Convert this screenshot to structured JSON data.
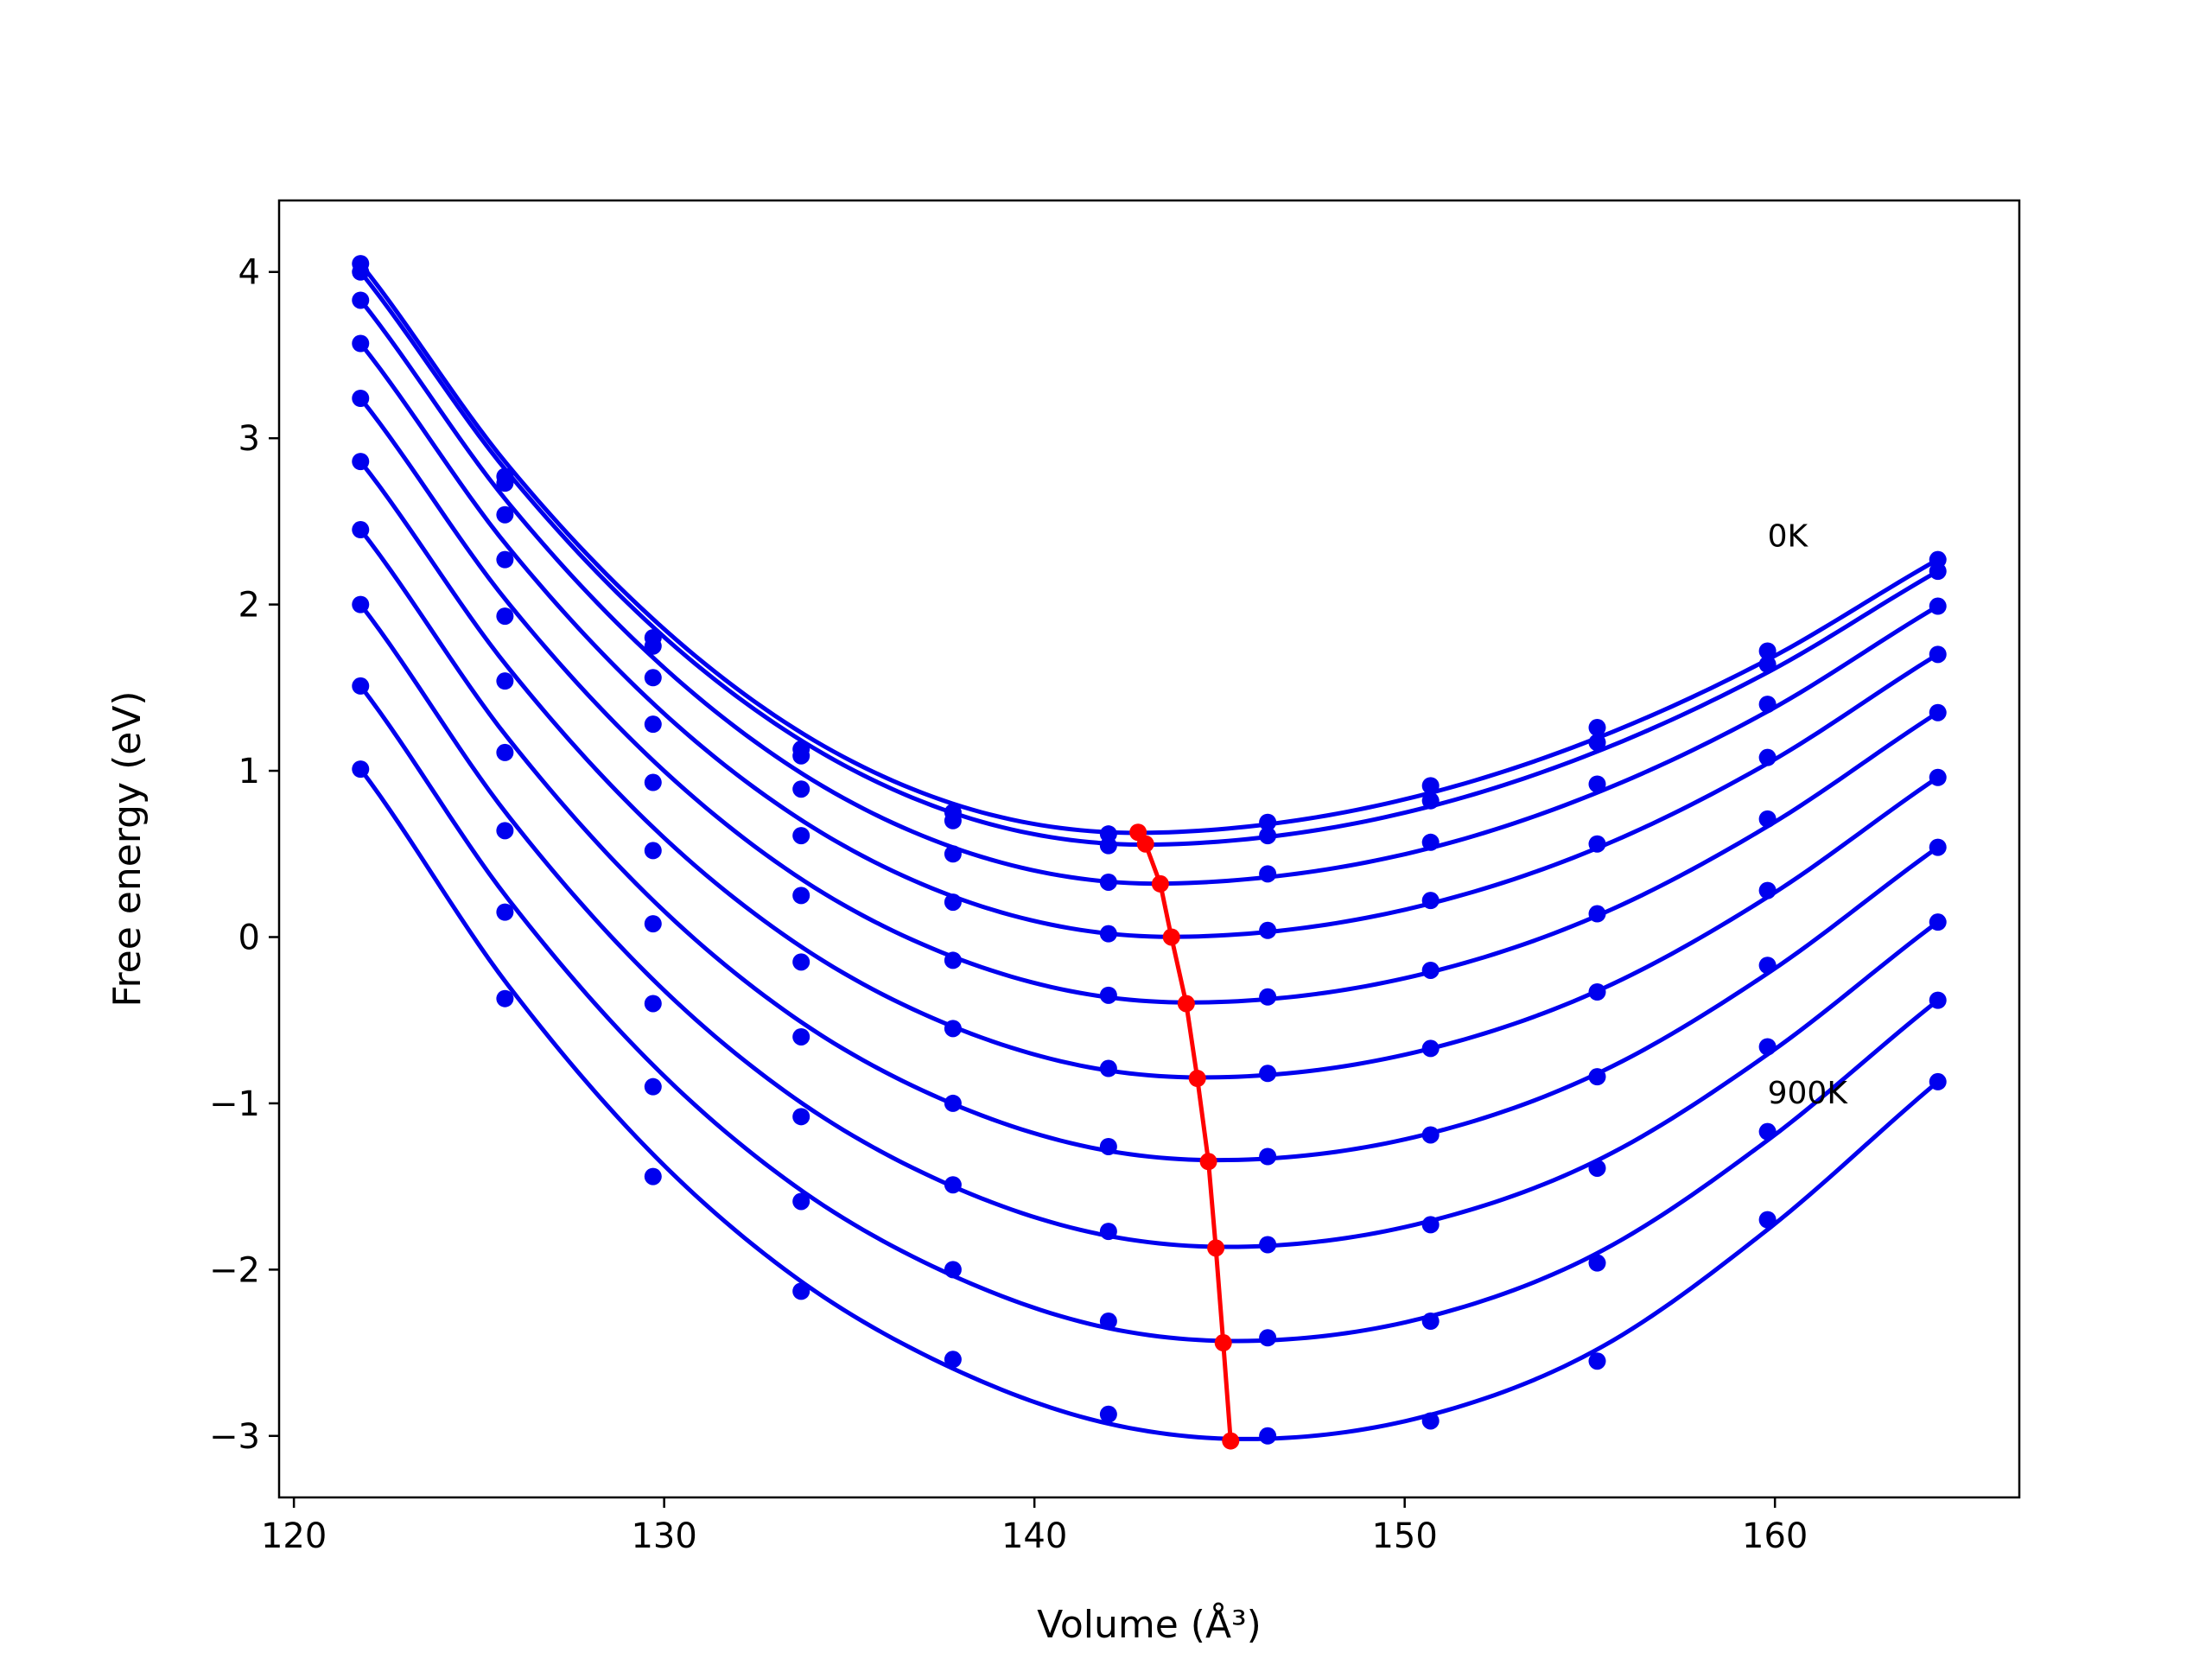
{
  "chart_data": {
    "type": "scatter",
    "title": "",
    "xlabel": "Volume (Å³)",
    "ylabel": "Free energy (eV)",
    "xlim": [
      119.6,
      166.6
    ],
    "ylim": [
      -3.37,
      4.43
    ],
    "xticks": [
      120,
      130,
      140,
      150,
      160
    ],
    "yticks": [
      -3,
      -2,
      -1,
      0,
      1,
      2,
      3,
      4
    ],
    "xtick_labels": [
      "120",
      "130",
      "140",
      "150",
      "160"
    ],
    "ytick_labels": [
      "−3",
      "−2",
      "−1",
      "0",
      "1",
      "2",
      "3",
      "4"
    ],
    "grid": false,
    "legend": "none",
    "annotations": [
      {
        "text": "0K",
        "x": 159.8,
        "y": 2.35
      },
      {
        "text": "900K",
        "x": 159.8,
        "y": -1.0
      }
    ],
    "volumes": [
      121.8,
      125.7,
      129.7,
      133.7,
      137.8,
      142.0,
      146.3,
      150.7,
      155.2,
      159.8,
      164.4
    ],
    "series": [
      {
        "color": "#0000ee",
        "points": [
          4.05,
          2.77,
          1.8,
          1.13,
          0.75,
          0.62,
          0.69,
          0.91,
          1.26,
          1.72,
          2.27
        ]
      },
      {
        "color": "#0000ee",
        "points": [
          4.0,
          2.73,
          1.75,
          1.09,
          0.7,
          0.55,
          0.61,
          0.82,
          1.17,
          1.64,
          2.2
        ]
      },
      {
        "color": "#0000ee",
        "points": [
          3.83,
          2.54,
          1.56,
          0.89,
          0.5,
          0.33,
          0.38,
          0.57,
          0.92,
          1.4,
          1.99
        ]
      },
      {
        "color": "#0000ee",
        "points": [
          3.57,
          2.27,
          1.28,
          0.61,
          0.21,
          0.02,
          0.04,
          0.22,
          0.56,
          1.08,
          1.7
        ]
      },
      {
        "color": "#0000ee",
        "points": [
          3.24,
          1.93,
          0.93,
          0.25,
          -0.14,
          -0.35,
          -0.36,
          -0.2,
          0.14,
          0.71,
          1.35
        ]
      },
      {
        "color": "#0000ee",
        "points": [
          2.86,
          1.54,
          0.52,
          -0.15,
          -0.55,
          -0.79,
          -0.82,
          -0.67,
          -0.33,
          0.28,
          0.96
        ]
      },
      {
        "color": "#0000ee",
        "points": [
          2.45,
          1.11,
          0.08,
          -0.6,
          -1.0,
          -1.26,
          -1.32,
          -1.19,
          -0.84,
          -0.17,
          0.54
        ]
      },
      {
        "color": "#0000ee",
        "points": [
          2.0,
          0.64,
          -0.4,
          -1.08,
          -1.49,
          -1.77,
          -1.85,
          -1.73,
          -1.39,
          -0.66,
          0.09
        ]
      },
      {
        "color": "#0000ee",
        "points": [
          1.51,
          0.15,
          -0.9,
          -1.59,
          -2.0,
          -2.31,
          -2.41,
          -2.31,
          -1.96,
          -1.17,
          -0.38
        ]
      },
      {
        "color": "#0000ee",
        "points": [
          1.01,
          -0.37,
          -1.44,
          -2.13,
          -2.54,
          -2.87,
          -3.0,
          -2.91,
          -2.55,
          -1.7,
          -0.87
        ]
      }
    ],
    "fit_curves": [
      {
        "color": "#0000ee",
        "minimum": [
          142.8,
          0.63
        ]
      },
      {
        "color": "#0000ee",
        "minimum": [
          143.0,
          0.56
        ]
      },
      {
        "color": "#0000ee",
        "minimum": [
          143.4,
          0.32
        ]
      },
      {
        "color": "#0000ee",
        "minimum": [
          143.7,
          0.0
        ]
      },
      {
        "color": "#0000ee",
        "minimum": [
          144.1,
          -0.4
        ]
      },
      {
        "color": "#0000ee",
        "minimum": [
          144.4,
          -0.85
        ]
      },
      {
        "color": "#0000ee",
        "minimum": [
          144.7,
          -1.35
        ]
      },
      {
        "color": "#0000ee",
        "minimum": [
          144.9,
          -1.87
        ]
      },
      {
        "color": "#0000ee",
        "minimum": [
          145.1,
          -2.44
        ]
      },
      {
        "color": "#0000ee",
        "minimum": [
          145.3,
          -3.03
        ]
      }
    ],
    "minima_line": {
      "color": "#ff0000",
      "points": [
        [
          142.8,
          0.63
        ],
        [
          143.0,
          0.56
        ],
        [
          143.4,
          0.32
        ],
        [
          143.7,
          0.0
        ],
        [
          144.1,
          -0.4
        ],
        [
          144.4,
          -0.85
        ],
        [
          144.7,
          -1.35
        ],
        [
          144.9,
          -1.87
        ],
        [
          145.1,
          -2.44
        ],
        [
          145.3,
          -3.03
        ]
      ]
    }
  }
}
